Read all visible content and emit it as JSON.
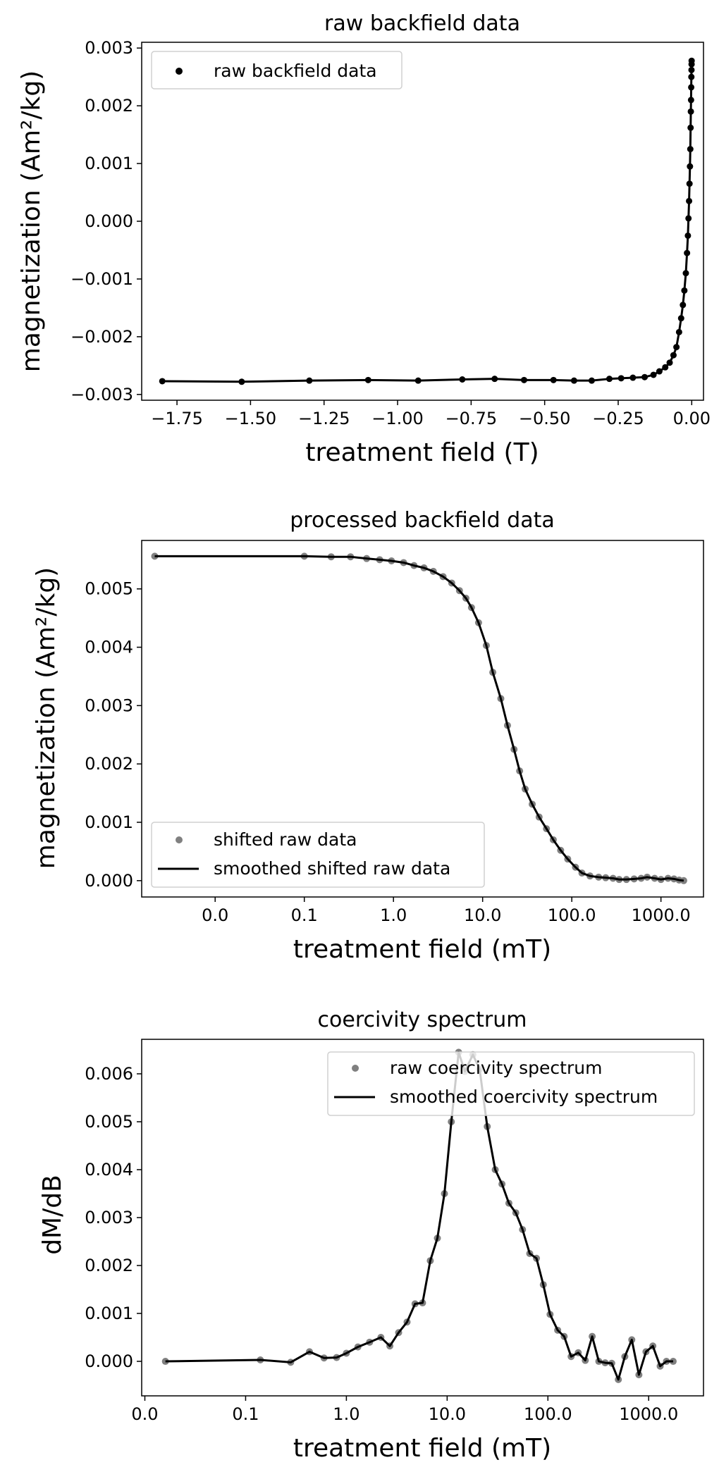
{
  "chart_data": [
    {
      "type": "line",
      "title": "raw backfield data",
      "xlabel": "treatment field (T)",
      "ylabel": "magnetization (Am²/kg)",
      "xlim": [
        -1.87,
        0.04
      ],
      "ylim": [
        -0.0031,
        0.0031
      ],
      "xticks": [
        -1.75,
        -1.5,
        -1.25,
        -1.0,
        -0.75,
        -0.5,
        -0.25,
        0.0
      ],
      "xtick_labels": [
        "−1.75",
        "−1.50",
        "−1.25",
        "−1.00",
        "−0.75",
        "−0.50",
        "−0.25",
        "0.00"
      ],
      "yticks": [
        -0.003,
        -0.002,
        -0.001,
        0.0,
        0.001,
        0.002,
        0.003
      ],
      "ytick_labels": [
        "−0.003",
        "−0.002",
        "−0.001",
        "0.000",
        "0.001",
        "0.002",
        "0.003"
      ],
      "grid": false,
      "legend_position": "top-left",
      "series": [
        {
          "name": "raw backfield data",
          "color": "#000000",
          "x": [
            -1.8,
            -1.53,
            -1.3,
            -1.1,
            -0.93,
            -0.78,
            -0.67,
            -0.57,
            -0.47,
            -0.4,
            -0.34,
            -0.28,
            -0.24,
            -0.2,
            -0.16,
            -0.13,
            -0.11,
            -0.09,
            -0.075,
            -0.062,
            -0.052,
            -0.043,
            -0.036,
            -0.03,
            -0.025,
            -0.02,
            -0.016,
            -0.013,
            -0.011,
            -0.009,
            -0.0075,
            -0.006,
            -0.0048,
            -0.0038,
            -0.003,
            -0.0023,
            -0.0017,
            -0.0012,
            -0.0008,
            -0.0005,
            -0.0003
          ],
          "y": [
            -0.00277,
            -0.00278,
            -0.00276,
            -0.00275,
            -0.00276,
            -0.00274,
            -0.00273,
            -0.00275,
            -0.00275,
            -0.00276,
            -0.00276,
            -0.00273,
            -0.00272,
            -0.00271,
            -0.0027,
            -0.00266,
            -0.0026,
            -0.00253,
            -0.00245,
            -0.00232,
            -0.00218,
            -0.00192,
            -0.00168,
            -0.00145,
            -0.0012,
            -0.0009,
            -0.00055,
            -0.00025,
            5e-05,
            0.00035,
            0.00065,
            0.00095,
            0.00125,
            0.00162,
            0.0019,
            0.0021,
            0.00232,
            0.0025,
            0.00262,
            0.00272,
            0.00278
          ]
        }
      ]
    },
    {
      "type": "line",
      "title": "processed backfield data",
      "xlabel": "treatment field (mT)",
      "ylabel": "magnetization (Am²/kg)",
      "xscale": "log",
      "xlim": [
        0.0015,
        3000
      ],
      "ylim": [
        -0.00028,
        0.00583
      ],
      "xticks": [
        0.01,
        0.1,
        1,
        10,
        100,
        1000
      ],
      "xtick_labels": [
        "0.0",
        "0.1",
        "1.0",
        "10.0",
        "100.0",
        "1000.0"
      ],
      "yticks": [
        0.0,
        0.001,
        0.002,
        0.003,
        0.004,
        0.005
      ],
      "ytick_labels": [
        "0.000",
        "0.001",
        "0.002",
        "0.003",
        "0.004",
        "0.005"
      ],
      "grid": false,
      "legend_position": "bottom-left",
      "series": [
        {
          "name": "shifted raw data",
          "style": "scatter",
          "color": "#808080",
          "x": [
            0.0021,
            0.1,
            0.2,
            0.33,
            0.5,
            0.7,
            0.95,
            1.3,
            1.7,
            2.2,
            2.8,
            3.6,
            4.5,
            5.5,
            6.5,
            7.5,
            9.0,
            11,
            13,
            16,
            19,
            22.5,
            26,
            30,
            36,
            43,
            52,
            62,
            75,
            90,
            110,
            130,
            160,
            200,
            240,
            290,
            340,
            410,
            500,
            600,
            700,
            850,
            1000,
            1200,
            1400,
            1600,
            1800
          ],
          "y": [
            0.00556,
            0.00556,
            0.00555,
            0.00555,
            0.00552,
            0.0055,
            0.00548,
            0.00545,
            0.0054,
            0.00536,
            0.0053,
            0.00521,
            0.0051,
            0.00497,
            0.00484,
            0.00468,
            0.00442,
            0.00403,
            0.00357,
            0.00312,
            0.00266,
            0.00225,
            0.00188,
            0.00157,
            0.00131,
            0.00109,
            0.00089,
            0.0007,
            0.00052,
            0.00037,
            0.00023,
            0.00013,
            8e-05,
            6e-05,
            5e-05,
            4e-05,
            2e-05,
            2e-05,
            3e-05,
            4e-05,
            6e-05,
            4e-05,
            2e-05,
            4e-05,
            3e-05,
            1e-05,
            0.0
          ]
        },
        {
          "name": "smoothed shifted raw data",
          "style": "line",
          "color": "#000000",
          "x": [
            0.0021,
            0.1,
            0.2,
            0.33,
            0.5,
            0.7,
            0.95,
            1.3,
            1.7,
            2.2,
            2.8,
            3.6,
            4.5,
            5.5,
            6.5,
            7.5,
            9.0,
            11,
            13,
            16,
            19,
            22.5,
            26,
            30,
            36,
            43,
            52,
            62,
            75,
            90,
            110,
            130,
            160,
            200,
            240,
            290,
            340,
            410,
            500,
            600,
            700,
            850,
            1000,
            1200,
            1400,
            1600,
            1800
          ],
          "y": [
            0.00556,
            0.00556,
            0.00555,
            0.00555,
            0.00552,
            0.0055,
            0.00548,
            0.00545,
            0.0054,
            0.00536,
            0.0053,
            0.00521,
            0.0051,
            0.00497,
            0.00484,
            0.00468,
            0.00442,
            0.00403,
            0.00357,
            0.00312,
            0.00266,
            0.00225,
            0.00188,
            0.00157,
            0.00131,
            0.00109,
            0.00089,
            0.0007,
            0.00052,
            0.00037,
            0.00023,
            0.00013,
            8e-05,
            6e-05,
            5e-05,
            4e-05,
            2e-05,
            2e-05,
            3e-05,
            4e-05,
            6e-05,
            4e-05,
            2e-05,
            4e-05,
            3e-05,
            1e-05,
            0.0
          ]
        }
      ]
    },
    {
      "type": "line",
      "title": "coercivity spectrum",
      "xlabel": "treatment field (mT)",
      "ylabel": "dM/dB",
      "xscale": "log",
      "xlim": [
        0.0093,
        3500
      ],
      "ylim": [
        -0.00072,
        0.00672
      ],
      "xticks": [
        0.01,
        0.1,
        1,
        10,
        100,
        1000
      ],
      "xtick_labels": [
        "0.0",
        "0.1",
        "1.0",
        "10.0",
        "100.0",
        "1000.0"
      ],
      "yticks": [
        0.0,
        0.001,
        0.002,
        0.003,
        0.004,
        0.005,
        0.006
      ],
      "ytick_labels": [
        "0.000",
        "0.001",
        "0.002",
        "0.003",
        "0.004",
        "0.005",
        "0.006"
      ],
      "grid": false,
      "legend_position": "top-right",
      "series": [
        {
          "name": "raw coercivity spectrum",
          "style": "scatter",
          "color": "#808080",
          "x": [
            0.016,
            0.14,
            0.28,
            0.43,
            0.6,
            0.8,
            1.0,
            1.3,
            1.7,
            2.2,
            2.7,
            3.3,
            4.0,
            4.8,
            5.7,
            6.8,
            8.0,
            9.4,
            11,
            13,
            15,
            18,
            21,
            25,
            30,
            35,
            41,
            48,
            56,
            66,
            77,
            90,
            105,
            125,
            145,
            170,
            200,
            235,
            275,
            320,
            370,
            430,
            500,
            580,
            680,
            800,
            940,
            1100,
            1300,
            1500,
            1750
          ],
          "y": [
            0.0,
            3e-05,
            -2e-05,
            0.0002,
            7e-05,
            8e-05,
            0.00017,
            0.0003,
            0.0004,
            0.0005,
            0.00032,
            0.0006,
            0.00082,
            0.0012,
            0.00122,
            0.0021,
            0.00257,
            0.0035,
            0.005,
            0.00645,
            0.00605,
            0.0064,
            0.0061,
            0.0049,
            0.004,
            0.0037,
            0.0033,
            0.0031,
            0.00275,
            0.00225,
            0.00215,
            0.0016,
            0.00098,
            0.00065,
            0.00052,
            0.0001,
            0.00018,
            2e-05,
            0.00052,
            0.0,
            -3e-05,
            -4e-05,
            -0.00038,
            0.0001,
            0.00045,
            -0.00028,
            0.0002,
            0.00032,
            -0.0001,
            0.0,
            0.0
          ]
        },
        {
          "name": "smoothed coercivity spectrum",
          "style": "line",
          "color": "#000000",
          "x": [
            0.016,
            0.14,
            0.28,
            0.43,
            0.6,
            0.8,
            1.0,
            1.3,
            1.7,
            2.2,
            2.7,
            3.3,
            4.0,
            4.8,
            5.7,
            6.8,
            8.0,
            9.4,
            11,
            13,
            15,
            18,
            21,
            25,
            30,
            35,
            41,
            48,
            56,
            66,
            77,
            90,
            105,
            125,
            145,
            170,
            200,
            235,
            275,
            320,
            370,
            430,
            500,
            580,
            680,
            800,
            940,
            1100,
            1300,
            1500,
            1750
          ],
          "y": [
            0.0,
            3e-05,
            -2e-05,
            0.0002,
            7e-05,
            8e-05,
            0.00017,
            0.0003,
            0.0004,
            0.0005,
            0.00032,
            0.0006,
            0.00082,
            0.0012,
            0.00122,
            0.0021,
            0.00257,
            0.0035,
            0.005,
            0.00645,
            0.00605,
            0.0064,
            0.0061,
            0.0049,
            0.004,
            0.0037,
            0.0033,
            0.0031,
            0.00275,
            0.00225,
            0.00215,
            0.0016,
            0.00098,
            0.00065,
            0.00052,
            0.0001,
            0.00018,
            2e-05,
            0.00052,
            0.0,
            -3e-05,
            -4e-05,
            -0.00038,
            0.0001,
            0.00045,
            -0.00028,
            0.0002,
            0.00032,
            -0.0001,
            0.0,
            0.0
          ]
        }
      ]
    }
  ]
}
